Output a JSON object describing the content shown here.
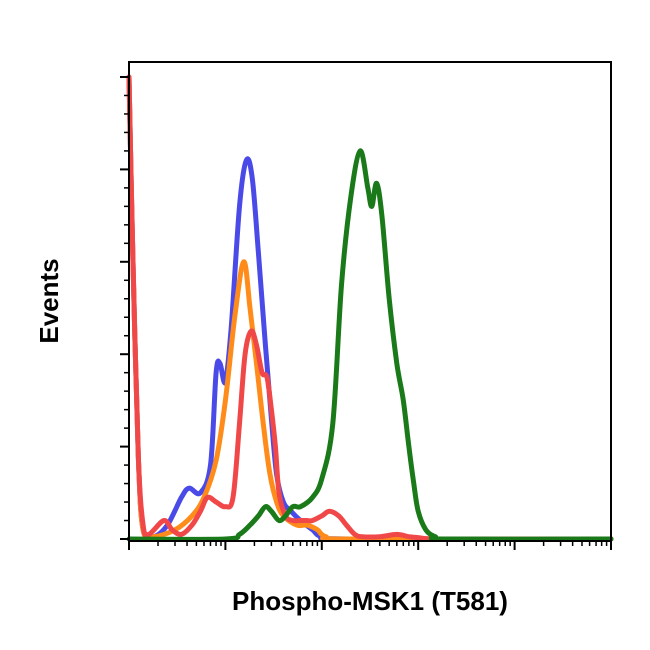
{
  "chart_data": {
    "type": "line",
    "title": "",
    "xlabel": "Phospho-MSK1 (T581)",
    "ylabel": "Events",
    "x_scale": "log",
    "xlim": [
      1,
      100000
    ],
    "ylim": [
      0,
      100
    ],
    "grid": false,
    "legend": "none",
    "series": [
      {
        "color": "#4a4ae8",
        "points": [
          [
            1,
            100
          ],
          [
            1.1,
            60
          ],
          [
            1.25,
            18
          ],
          [
            1.4,
            2
          ],
          [
            1.8,
            0.5
          ],
          [
            2.5,
            3
          ],
          [
            3.5,
            9
          ],
          [
            4.2,
            11
          ],
          [
            5.5,
            10
          ],
          [
            7,
            16
          ],
          [
            8,
            36
          ],
          [
            8.8,
            38
          ],
          [
            10,
            34
          ],
          [
            11.5,
            46
          ],
          [
            14,
            72
          ],
          [
            16.5,
            82
          ],
          [
            19,
            78
          ],
          [
            22,
            62
          ],
          [
            26,
            42
          ],
          [
            30,
            26
          ],
          [
            34,
            14
          ],
          [
            40,
            8
          ],
          [
            48,
            6
          ],
          [
            60,
            4
          ],
          [
            80,
            2
          ],
          [
            100,
            0.5
          ],
          [
            200,
            0
          ],
          [
            100000,
            0
          ]
        ]
      },
      {
        "color": "#ff8c1a",
        "points": [
          [
            1,
            100
          ],
          [
            1.1,
            60
          ],
          [
            1.25,
            18
          ],
          [
            1.4,
            2
          ],
          [
            1.8,
            0.5
          ],
          [
            3,
            2
          ],
          [
            4.5,
            5
          ],
          [
            6,
            9
          ],
          [
            8,
            17
          ],
          [
            10,
            30
          ],
          [
            12.5,
            48
          ],
          [
            15.5,
            60
          ],
          [
            18,
            50
          ],
          [
            21,
            38
          ],
          [
            25,
            24
          ],
          [
            29,
            14
          ],
          [
            34,
            8
          ],
          [
            40,
            5
          ],
          [
            55,
            3
          ],
          [
            70,
            3
          ],
          [
            90,
            2
          ],
          [
            110,
            0.5
          ],
          [
            200,
            0
          ],
          [
            100000,
            0
          ]
        ]
      },
      {
        "color": "#f04848",
        "points": [
          [
            1,
            100
          ],
          [
            1.1,
            60
          ],
          [
            1.25,
            18
          ],
          [
            1.4,
            3
          ],
          [
            1.6,
            1
          ],
          [
            2.3,
            4
          ],
          [
            2.8,
            2
          ],
          [
            3.5,
            1
          ],
          [
            4.5,
            3
          ],
          [
            5.5,
            6
          ],
          [
            6.5,
            9
          ],
          [
            8,
            8
          ],
          [
            10,
            7
          ],
          [
            12,
            9
          ],
          [
            14,
            25
          ],
          [
            16,
            40
          ],
          [
            18.5,
            45
          ],
          [
            21,
            42
          ],
          [
            24,
            36
          ],
          [
            27,
            35
          ],
          [
            30,
            28
          ],
          [
            33,
            20
          ],
          [
            36,
            10
          ],
          [
            42,
            5
          ],
          [
            50,
            4
          ],
          [
            60,
            4
          ],
          [
            70,
            4
          ],
          [
            80,
            4
          ],
          [
            100,
            5
          ],
          [
            120,
            6
          ],
          [
            150,
            5
          ],
          [
            180,
            3
          ],
          [
            220,
            1
          ],
          [
            260,
            0.5
          ],
          [
            400,
            0.5
          ],
          [
            600,
            1
          ],
          [
            800,
            0.5
          ],
          [
            1000,
            0.3
          ],
          [
            2000,
            0
          ],
          [
            100000,
            0
          ]
        ]
      },
      {
        "color": "#1a7a1a",
        "points": [
          [
            1,
            0
          ],
          [
            10,
            0
          ],
          [
            14,
            1
          ],
          [
            18,
            3
          ],
          [
            22,
            5
          ],
          [
            26,
            7
          ],
          [
            30,
            6
          ],
          [
            36,
            4
          ],
          [
            42,
            5
          ],
          [
            50,
            7
          ],
          [
            60,
            7
          ],
          [
            80,
            9
          ],
          [
            100,
            13
          ],
          [
            130,
            25
          ],
          [
            160,
            55
          ],
          [
            200,
            74
          ],
          [
            250,
            84
          ],
          [
            300,
            76
          ],
          [
            330,
            72
          ],
          [
            370,
            77
          ],
          [
            420,
            70
          ],
          [
            500,
            52
          ],
          [
            600,
            38
          ],
          [
            700,
            30
          ],
          [
            800,
            20
          ],
          [
            900,
            12
          ],
          [
            1000,
            6
          ],
          [
            1200,
            2
          ],
          [
            1500,
            0.5
          ],
          [
            2000,
            0
          ],
          [
            100000,
            0
          ]
        ]
      }
    ]
  }
}
